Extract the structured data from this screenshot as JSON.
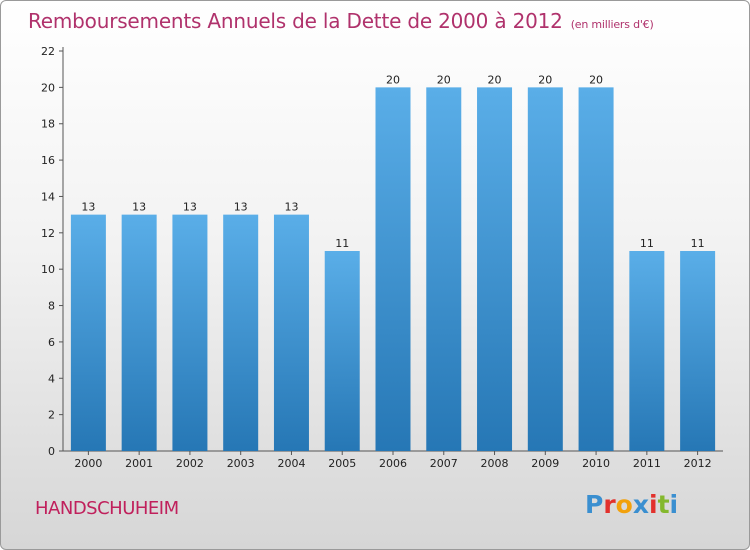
{
  "chart_data": {
    "type": "bar",
    "title": "Remboursements Annuels de la Dette de 2000 à 2012",
    "unit": "(en milliers d'€)",
    "categories": [
      "2000",
      "2001",
      "2002",
      "2003",
      "2004",
      "2005",
      "2006",
      "2007",
      "2008",
      "2009",
      "2010",
      "2011",
      "2012"
    ],
    "values": [
      13,
      13,
      13,
      13,
      13,
      11,
      20,
      20,
      20,
      20,
      20,
      11,
      11
    ],
    "ylim": [
      0,
      22
    ],
    "yticks": [
      0,
      2,
      4,
      6,
      8,
      10,
      12,
      14,
      16,
      18,
      20,
      22
    ],
    "grid": false,
    "bar_color_top": "#5aaee8",
    "bar_color_bottom": "#2677b5"
  },
  "commune": "HANDSCHUHEIM",
  "logo": {
    "letters": [
      "P",
      "r",
      "o",
      "x",
      "i",
      "t",
      "i"
    ],
    "colors": [
      "#3a8fd0",
      "#e2312c",
      "#f2a10c",
      "#3a8fd0",
      "#e2312c",
      "#84b82d",
      "#3a8fd0"
    ]
  }
}
